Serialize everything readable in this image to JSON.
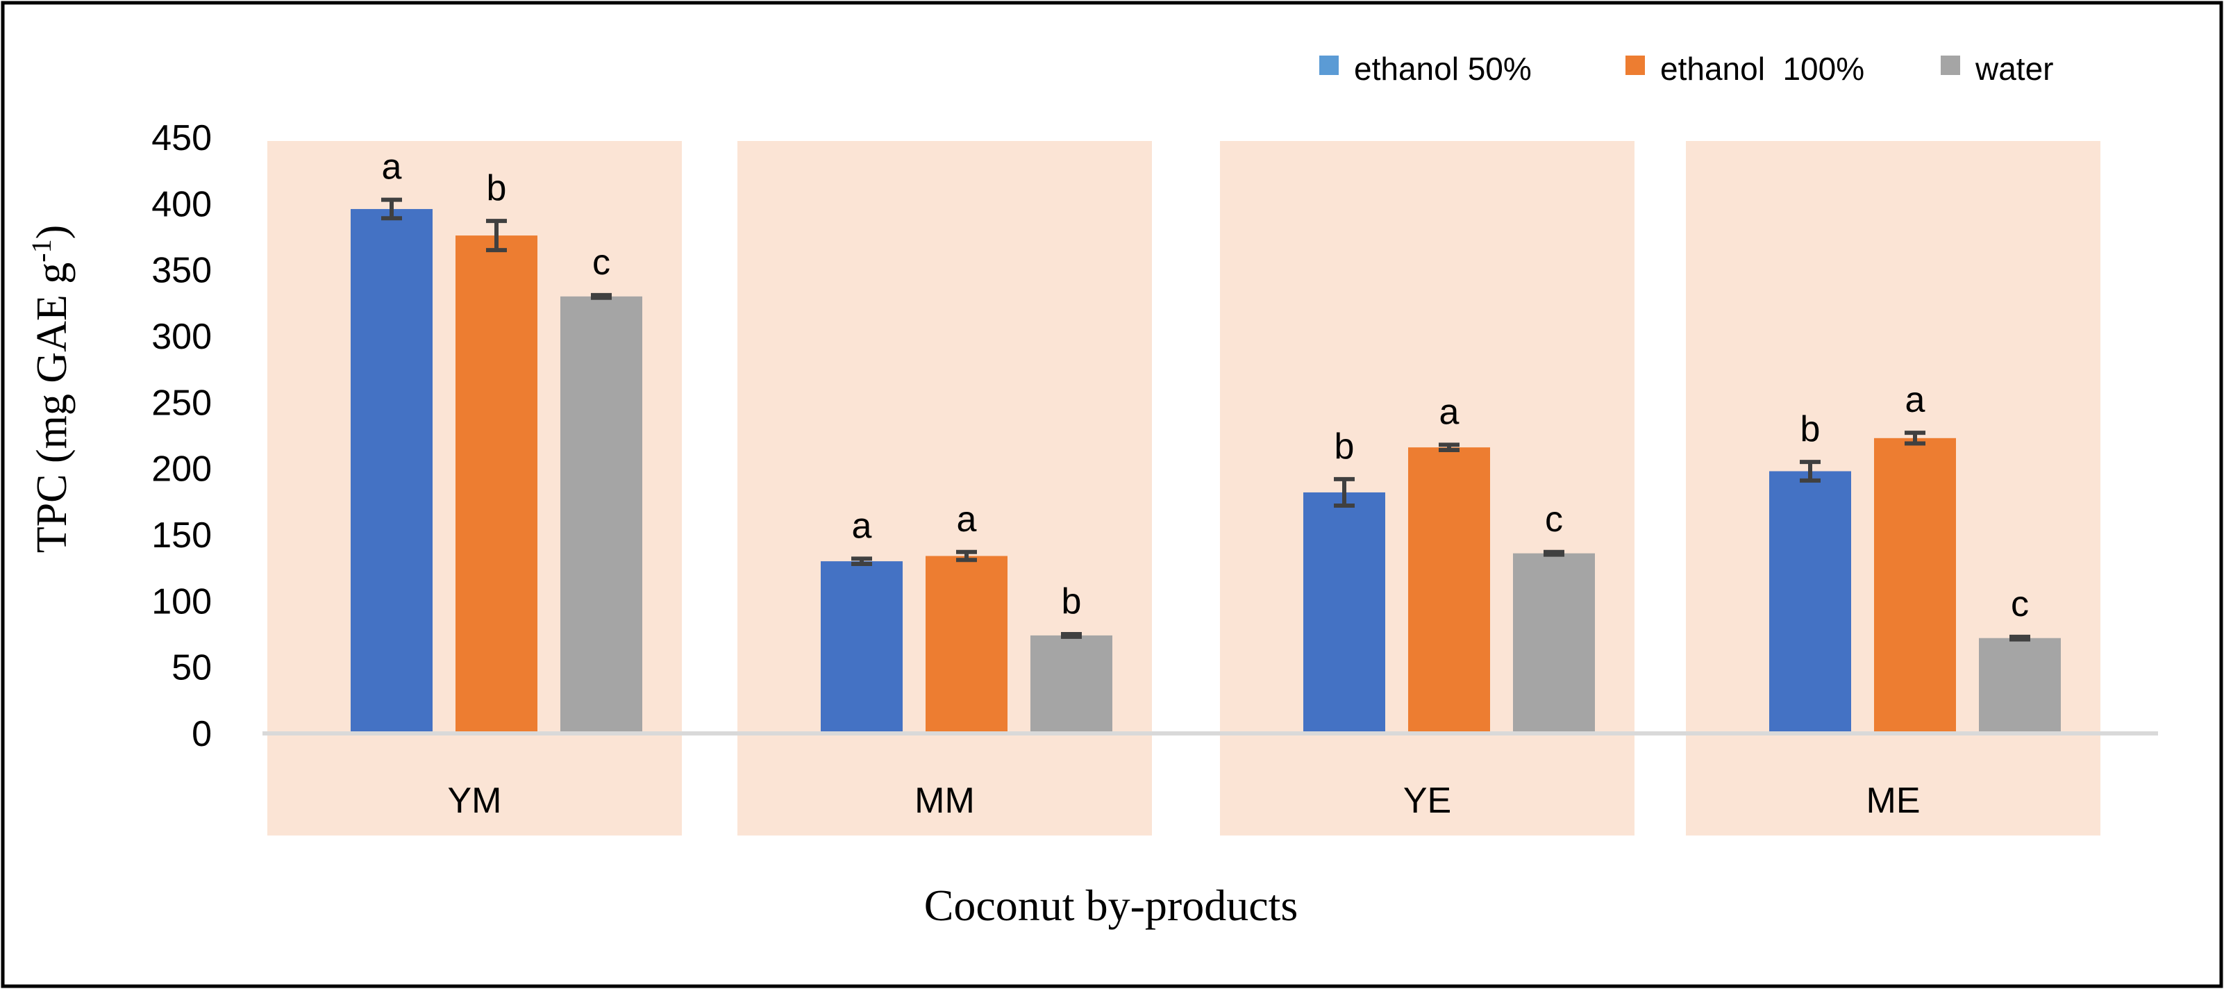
{
  "chart_data": {
    "type": "bar",
    "title": "",
    "xlabel": "Coconut by-products",
    "ylabel": {
      "prefix": "TPC (mg GAE g",
      "superscript": "-1",
      "suffix": ")"
    },
    "ylim": [
      0,
      450
    ],
    "yticks": [
      "0",
      "50",
      "100",
      "150",
      "200",
      "250",
      "300",
      "350",
      "400",
      "450"
    ],
    "categories": [
      "YM",
      "MM",
      "YE",
      "ME"
    ],
    "series": [
      {
        "name": "ethanol 50%",
        "color": "#4472c4",
        "legend_color": "#5b9bd5",
        "values": [
          396,
          130,
          182,
          198
        ],
        "errors": [
          7,
          2,
          10,
          7
        ],
        "letters": [
          "a",
          "a",
          "b",
          "b"
        ]
      },
      {
        "name": "ethanol  100%",
        "color": "#ed7d31",
        "legend_color": "#ed7d31",
        "values": [
          376,
          134,
          216,
          223
        ],
        "errors": [
          11,
          3,
          2,
          4
        ],
        "letters": [
          "b",
          "a",
          "a",
          "a"
        ]
      },
      {
        "name": "water",
        "color": "#a5a5a5",
        "legend_color": "#a5a5a5",
        "values": [
          330,
          74,
          136,
          72
        ],
        "errors": [
          1,
          1,
          1,
          1
        ],
        "letters": [
          "c",
          "b",
          "c",
          "c"
        ]
      }
    ],
    "legend_position": "top-right",
    "grid": false
  }
}
